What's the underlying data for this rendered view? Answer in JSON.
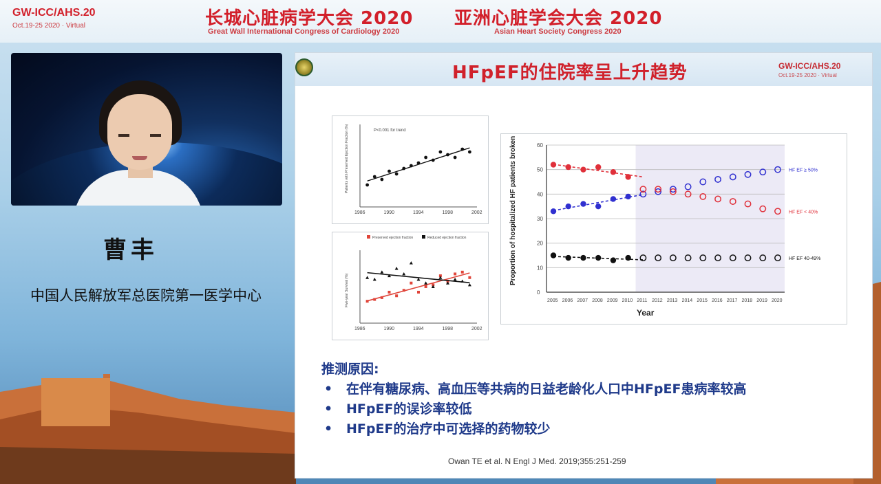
{
  "header": {
    "brand": "GW-ICC/AHS.20",
    "dates": "Oct.19-25 2020 · Virtual",
    "title_cn_1": "长城心脏病学大会 2020",
    "subtitle_en_1": "Great Wall International Congress of Cardiology 2020",
    "title_cn_2": "亚洲心脏学会大会 2020",
    "subtitle_en_2": "Asian Heart Society Congress 2020"
  },
  "speaker": {
    "name": "曹丰",
    "affiliation": "中国人民解放军总医院第一医学中心"
  },
  "slide": {
    "title": "HFpEF的住院率呈上升趋势",
    "brand": "GW-ICC/AHS.20",
    "dates": "Oct.19-25 2020 · Virtual",
    "reasons_heading": "推测原因:",
    "reasons": [
      "在伴有糖尿病、高血压等共病的日益老龄化人口中HFpEF患病率较高",
      "HFpEF的误诊率较低",
      "HFpEF的治疗中可选择的药物较少"
    ],
    "citation": "Owan TE et al. N Engl J Med. 2019;355:251-259"
  },
  "chart_data": [
    {
      "type": "scatter",
      "title": "",
      "xlabel": "",
      "ylabel": "Patients with Preserved Ejection Fraction (%)",
      "xlim": [
        1986,
        2002
      ],
      "ylim": [
        30,
        60
      ],
      "x_ticks": [
        "1986",
        "1990",
        "1994",
        "1998",
        "2002"
      ],
      "annotation": "P<0.001 for trend",
      "series": [
        {
          "name": "",
          "x": [
            1987,
            1988,
            1989,
            1990,
            1991,
            1992,
            1993,
            1994,
            1995,
            1996,
            1997,
            1998,
            1999,
            2000,
            2001
          ],
          "y": [
            38,
            41,
            40,
            43,
            42,
            44,
            45,
            46,
            48,
            47,
            50,
            49,
            48,
            51,
            50
          ]
        }
      ]
    },
    {
      "type": "line",
      "title": "",
      "ylabel": "Five-year Survival (%)",
      "xlim": [
        1986,
        2002
      ],
      "ylim": [
        0,
        40
      ],
      "x_ticks": [
        "1986",
        "1990",
        "1994",
        "1998",
        "2002"
      ],
      "series": [
        {
          "name": "Preserved ejection fraction",
          "x": [
            1987,
            1988,
            1989,
            1990,
            1991,
            1992,
            1993,
            1994,
            1995,
            1996,
            1997,
            1998,
            1999,
            2000,
            2001
          ],
          "y": [
            12,
            13,
            14,
            17,
            15,
            18,
            22,
            17,
            20,
            21,
            26,
            23,
            27,
            28,
            25
          ]
        },
        {
          "name": "Reduced ejection fraction",
          "x": [
            1987,
            1988,
            1989,
            1990,
            1991,
            1992,
            1993,
            1994,
            1995,
            1996,
            1997,
            1998,
            1999,
            2000,
            2001
          ],
          "y": [
            25,
            24,
            28,
            26,
            30,
            27,
            33,
            24,
            22,
            20,
            25,
            22,
            24,
            23,
            21
          ]
        }
      ]
    },
    {
      "type": "line",
      "title": "",
      "xlabel": "Year",
      "ylabel": "Proportion of hospitalized HF patients broken by EF",
      "ylim": [
        0,
        60
      ],
      "y_ticks": [
        0,
        10,
        20,
        30,
        40,
        50,
        60
      ],
      "categories": [
        "2005",
        "2006",
        "2007",
        "2008",
        "2009",
        "2010",
        "2011",
        "2012",
        "2013",
        "2014",
        "2015",
        "2016",
        "2017",
        "2018",
        "2019",
        "2020"
      ],
      "projection_start": "2011",
      "series": [
        {
          "name": "HF EF ≥ 50%",
          "color": "#3030d0",
          "values": [
            33,
            35,
            36,
            35,
            38,
            39,
            40,
            41,
            42,
            43,
            45,
            46,
            47,
            48,
            49,
            50
          ]
        },
        {
          "name": "HF EF < 40%",
          "color": "#e0303a",
          "values": [
            52,
            51,
            50,
            51,
            49,
            47,
            42,
            42,
            41,
            40,
            39,
            38,
            37,
            36,
            34,
            33
          ]
        },
        {
          "name": "HF EF 40-49%",
          "color": "#111111",
          "values": [
            15,
            14,
            14,
            14,
            13,
            14,
            14,
            14,
            14,
            14,
            14,
            14,
            14,
            14,
            14,
            14
          ]
        }
      ]
    }
  ]
}
